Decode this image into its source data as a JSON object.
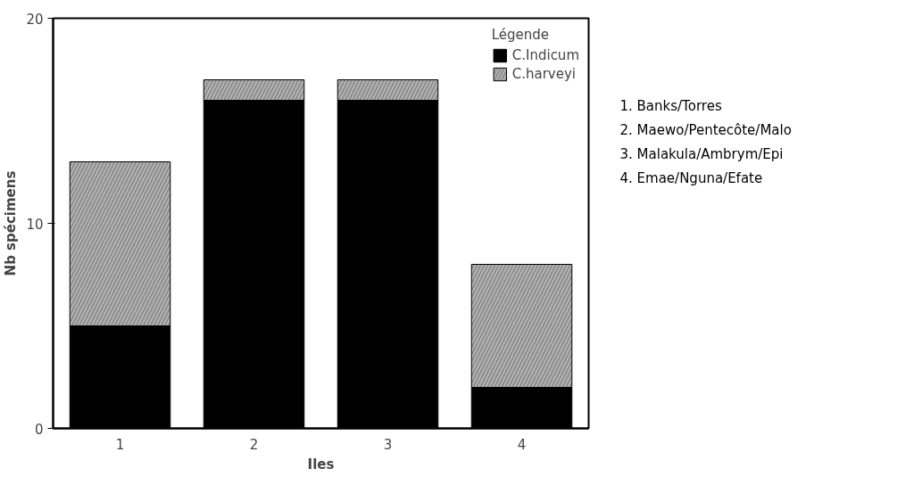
{
  "chart_data": {
    "type": "bar",
    "stacked": true,
    "xlabel": "Iles",
    "ylabel": "Nb spécimens",
    "legend_title": "Légende",
    "categories": [
      "1",
      "2",
      "3",
      "4"
    ],
    "series": [
      {
        "name": "C.Indicum",
        "color": "#000000",
        "values": [
          5,
          16,
          16,
          2
        ]
      },
      {
        "name": "C.harveyi",
        "color": "#b0b0b0",
        "values": [
          8,
          1,
          1,
          6
        ]
      }
    ],
    "ylim": [
      0,
      20
    ],
    "yticks": [
      0,
      10,
      20
    ],
    "grid": false,
    "legend": "top right",
    "annotations": [
      "1. Banks/Torres",
      "2. Maewo/Pentecôte/Malo",
      "3. Malakula/Ambrym/Epi",
      "4. Emae/Nguna/Efate"
    ]
  }
}
